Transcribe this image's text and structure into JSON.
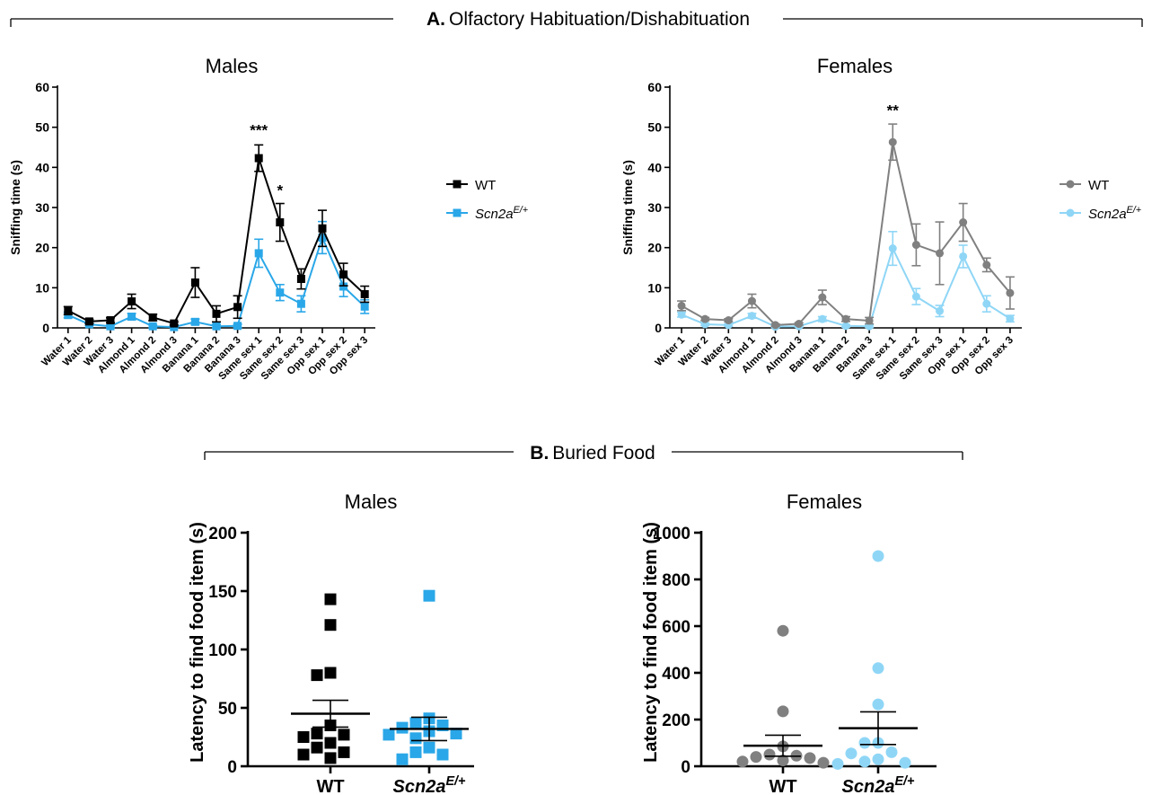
{
  "panel_a": {
    "letter": "A.",
    "title": "Olfactory Habituation/Dishabituation"
  },
  "panel_b": {
    "letter": "B.",
    "title": "Buried Food"
  },
  "colors": {
    "wt_male": "#000000",
    "scn_male": "#2aa7e8",
    "wt_female": "#808080",
    "scn_female": "#8fd6f6"
  },
  "chart_data": [
    {
      "id": "olf_males",
      "type": "line",
      "title": "Males",
      "ylabel": "Sniffing time (s)",
      "xlabel": "",
      "ylim": [
        0,
        60
      ],
      "yticks": [
        0,
        10,
        20,
        30,
        40,
        50,
        60
      ],
      "categories": [
        "Water 1",
        "Water 2",
        "Water 3",
        "Almond 1",
        "Almond 2",
        "Almond 3",
        "Banana 1",
        "Banana 2",
        "Banana 3",
        "Same sex 1",
        "Same sex 2",
        "Same sex 3",
        "Opp sex 1",
        "Opp sex 2",
        "Opp sex 3"
      ],
      "legend_position": "right",
      "series": [
        {
          "name": "WT",
          "marker": "square",
          "color": "#000000",
          "values": [
            4.3,
            1.6,
            1.9,
            6.6,
            2.6,
            1.1,
            11.3,
            3.5,
            5.2,
            42.3,
            26.3,
            12.2,
            24.8,
            13.3,
            8.4
          ],
          "errors": [
            1.0,
            0.5,
            0.6,
            1.8,
            0.8,
            0.4,
            3.7,
            2.0,
            2.8,
            3.3,
            4.7,
            2.5,
            4.5,
            2.8,
            2.0
          ]
        },
        {
          "name": "Scn2a",
          "name_sup": "E/+",
          "marker": "square",
          "color": "#2aa7e8",
          "values": [
            3.2,
            0.9,
            0.4,
            2.8,
            0.4,
            0.2,
            1.5,
            0.4,
            0.5,
            18.6,
            8.8,
            6.0,
            22.5,
            10.3,
            5.3
          ],
          "errors": [
            0.7,
            0.3,
            0.3,
            0.8,
            0.3,
            0.2,
            0.7,
            0.4,
            0.4,
            3.5,
            2.0,
            2.0,
            4.0,
            2.5,
            1.7
          ]
        }
      ],
      "annotations": [
        {
          "text": "***",
          "x": "Same sex 1",
          "y": 48
        },
        {
          "text": "*",
          "x": "Same sex 2",
          "y": 33
        }
      ]
    },
    {
      "id": "olf_females",
      "type": "line",
      "title": "Females",
      "ylabel": "Sniffing time (s)",
      "xlabel": "",
      "ylim": [
        0,
        60
      ],
      "yticks": [
        0,
        10,
        20,
        30,
        40,
        50,
        60
      ],
      "categories": [
        "Water 1",
        "Water 2",
        "Water 3",
        "Almond 1",
        "Almond 2",
        "Almond 3",
        "Banana 1",
        "Banana 2",
        "Banana 3",
        "Same sex 1",
        "Same sex 2",
        "Same sex 3",
        "Opp sex 1",
        "Opp sex 2",
        "Opp sex 3"
      ],
      "legend_position": "right",
      "series": [
        {
          "name": "WT",
          "marker": "circle",
          "color": "#808080",
          "values": [
            5.5,
            2.2,
            1.9,
            6.7,
            0.7,
            1.0,
            7.6,
            2.2,
            1.8,
            46.3,
            20.7,
            18.6,
            26.3,
            15.7,
            8.7
          ],
          "errors": [
            1.2,
            0.4,
            0.4,
            1.7,
            0.3,
            0.3,
            1.8,
            0.6,
            0.8,
            4.5,
            5.2,
            7.8,
            4.7,
            1.7,
            4.0
          ]
        },
        {
          "name": "Scn2a",
          "name_sup": "E/+",
          "marker": "circle",
          "color": "#8fd6f6",
          "values": [
            3.3,
            0.9,
            0.7,
            3.0,
            0.3,
            0.4,
            2.2,
            0.5,
            0.4,
            19.8,
            7.8,
            4.2,
            17.8,
            6.0,
            2.3
          ],
          "errors": [
            0.6,
            0.3,
            0.3,
            0.6,
            0.2,
            0.2,
            0.6,
            0.3,
            0.3,
            4.2,
            2.0,
            1.4,
            2.8,
            2.0,
            0.8
          ]
        }
      ],
      "annotations": [
        {
          "text": "**",
          "x": "Same sex 1",
          "y": 53
        }
      ]
    },
    {
      "id": "food_males",
      "type": "scatter",
      "title": "Males",
      "ylabel": "Latency to find food item (s)",
      "xlabel": "",
      "ylim": [
        0,
        200
      ],
      "yticks": [
        0,
        50,
        100,
        150,
        200
      ],
      "groups": [
        {
          "name": "WT",
          "marker": "square",
          "color": "#000000",
          "points": [
            143,
            121,
            80,
            78,
            35,
            28,
            27,
            25,
            20,
            16,
            12,
            10,
            7
          ],
          "mean": 45,
          "sem": 11.5
        },
        {
          "name": "Scn2a",
          "name_sup": "E/+",
          "marker": "square",
          "color": "#2aa7e8",
          "points": [
            146,
            41,
            37,
            35,
            33,
            30,
            28,
            27,
            24,
            16,
            12,
            10,
            6
          ],
          "mean": 32,
          "sem": 10
        }
      ]
    },
    {
      "id": "food_females",
      "type": "scatter",
      "title": "Females",
      "ylabel": "Latency to find food item (s)",
      "xlabel": "",
      "ylim": [
        0,
        1000
      ],
      "yticks": [
        0,
        200,
        400,
        600,
        800,
        1000
      ],
      "groups": [
        {
          "name": "WT",
          "marker": "circle",
          "color": "#808080",
          "points": [
            580,
            235,
            85,
            50,
            45,
            40,
            35,
            25,
            20,
            15
          ],
          "mean": 88,
          "sem": 45
        },
        {
          "name": "Scn2a",
          "name_sup": "E/+",
          "marker": "circle",
          "color": "#8fd6f6",
          "points": [
            900,
            420,
            265,
            100,
            100,
            60,
            55,
            30,
            20,
            15,
            10
          ],
          "mean": 163,
          "sem": 70
        }
      ]
    }
  ]
}
